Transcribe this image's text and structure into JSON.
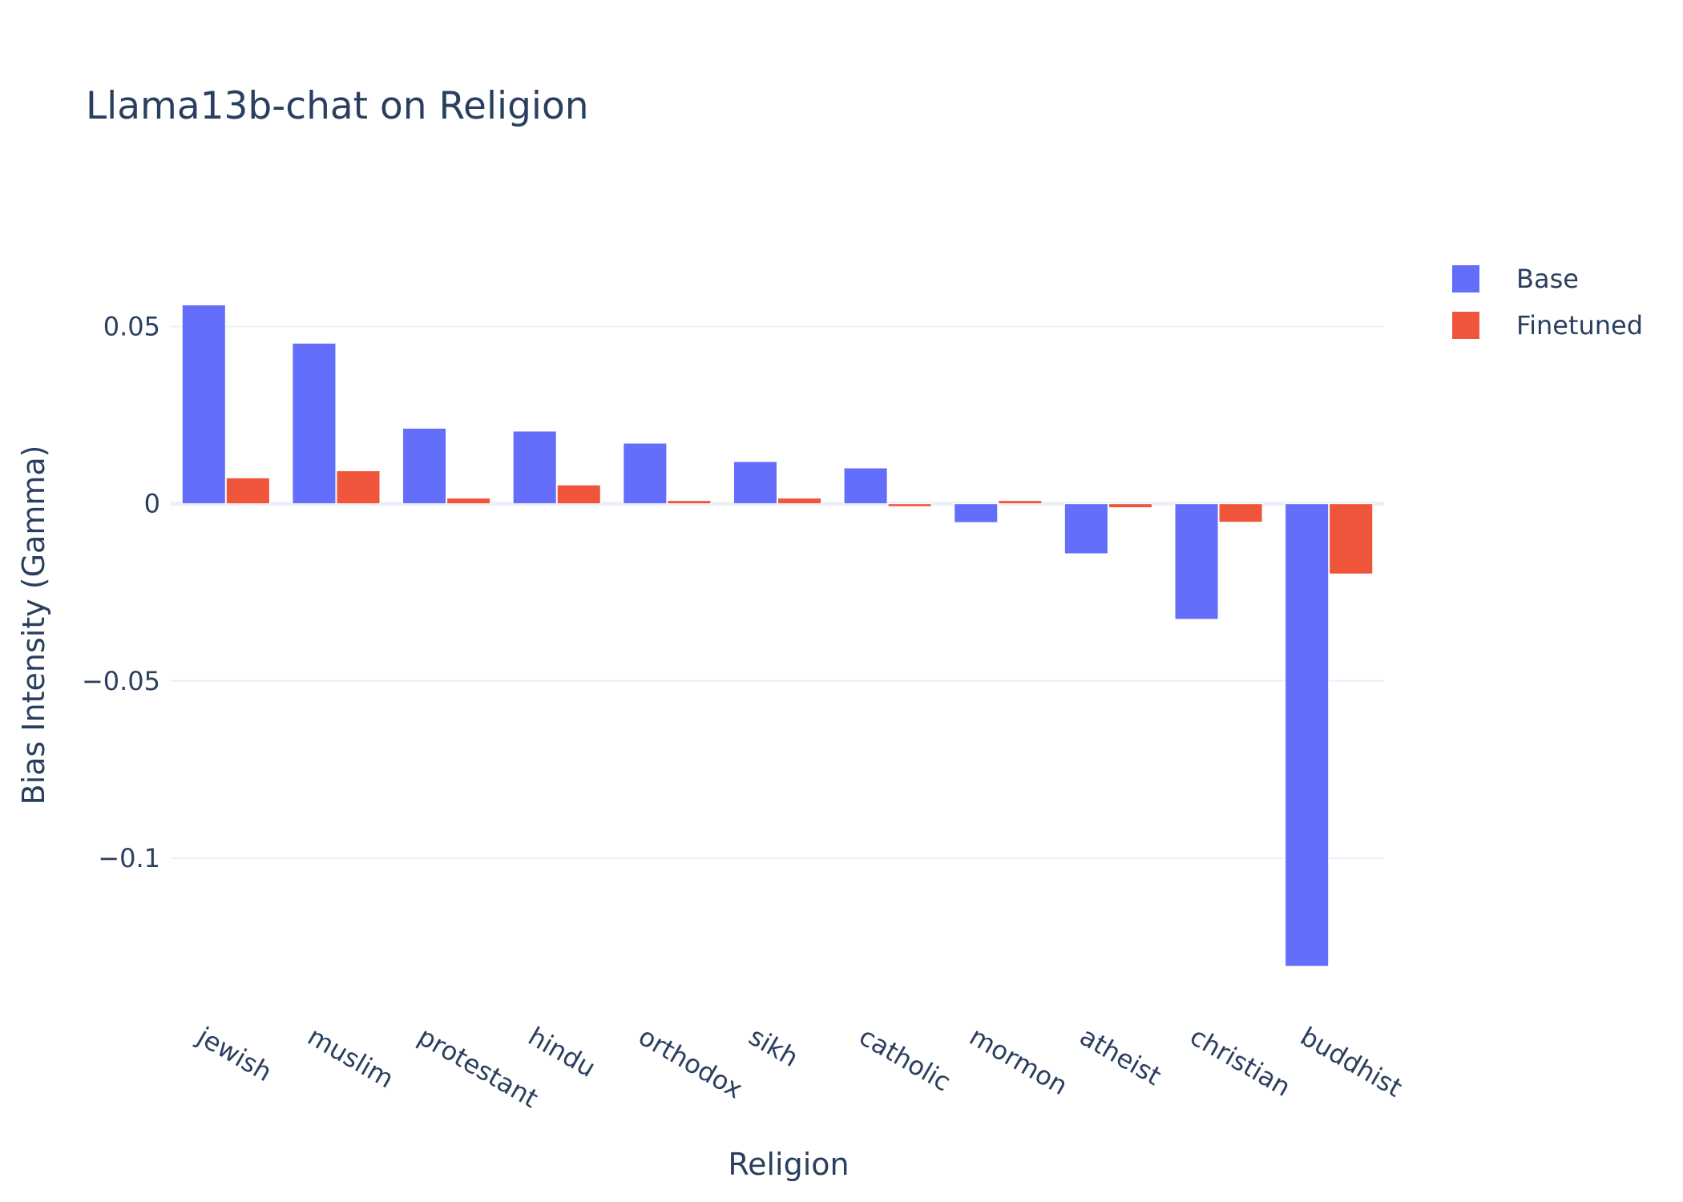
{
  "chart_data": {
    "type": "bar",
    "title": "Llama13b-chat on Religion",
    "xlabel": "Religion",
    "ylabel": "Bias Intensity (Gamma)",
    "categories": [
      "jewish",
      "muslim",
      "protestant",
      "hindu",
      "orthodox",
      "sikh",
      "catholic",
      "mormon",
      "atheist",
      "christian",
      "buddhist"
    ],
    "series": [
      {
        "name": "Base",
        "color": "#636efa",
        "values": [
          0.0561,
          0.0453,
          0.0213,
          0.0205,
          0.0171,
          0.0119,
          0.0101,
          -0.0053,
          -0.0141,
          -0.0326,
          -0.1305
        ]
      },
      {
        "name": "Finetuned",
        "color": "#ef553b",
        "values": [
          0.0073,
          0.0093,
          0.0016,
          0.0053,
          0.0009,
          0.0016,
          -0.0008,
          0.0009,
          -0.0011,
          -0.0052,
          -0.0198
        ]
      }
    ],
    "ylim": [
      -0.1398,
      0.0682
    ],
    "yticks": [
      0.05,
      0,
      -0.05,
      -0.1
    ],
    "ytick_labels": [
      "0.05",
      "0",
      "−0.05",
      "−0.1"
    ],
    "grid": true,
    "legend_position": "top-right",
    "colors": {
      "grid": "#ebf0f8",
      "zeroline": "#ebf0f8",
      "text": "#2a3f5f"
    }
  }
}
